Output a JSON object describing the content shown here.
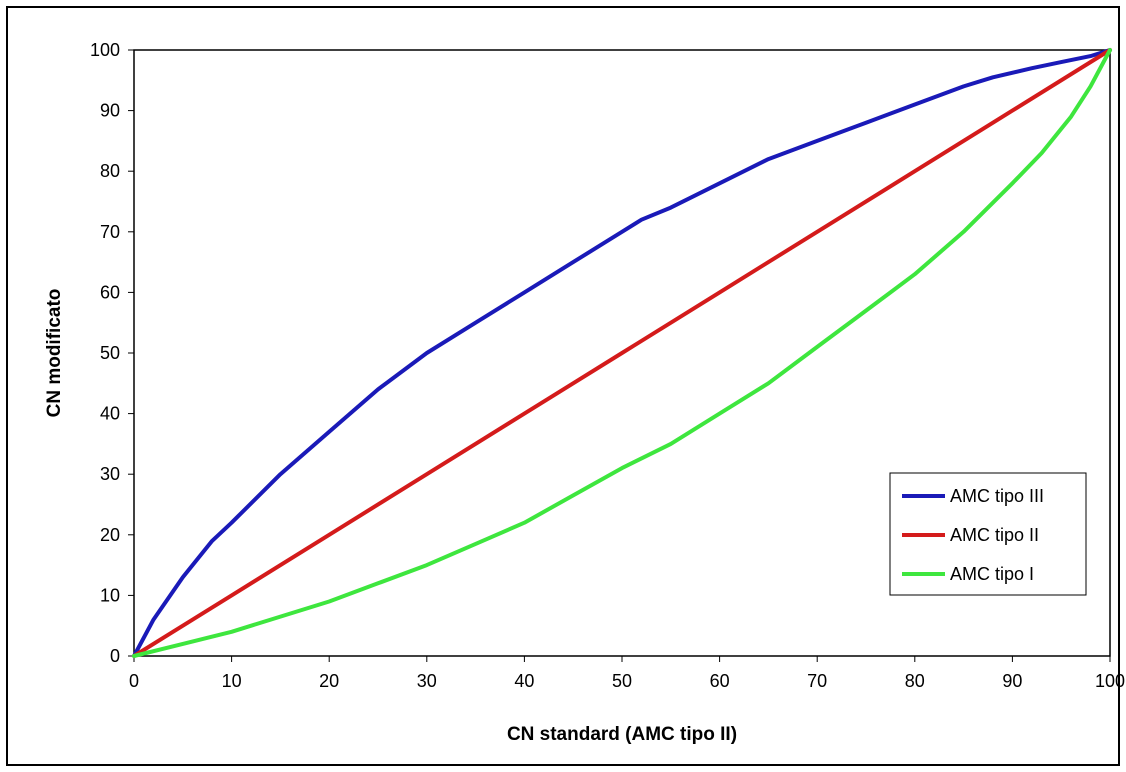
{
  "chart_data": {
    "type": "line",
    "title": "",
    "xlabel": "CN standard (AMC tipo II)",
    "ylabel": "CN modificato",
    "xlim": [
      0,
      100
    ],
    "ylim": [
      0,
      100
    ],
    "xticks": [
      "0",
      "10",
      "20",
      "30",
      "40",
      "50",
      "60",
      "70",
      "80",
      "90",
      "100"
    ],
    "yticks": [
      "0",
      "10",
      "20",
      "30",
      "40",
      "50",
      "60",
      "70",
      "80",
      "90",
      "100"
    ],
    "grid": true,
    "legend_position": "bottom-right",
    "series": [
      {
        "name": "AMC tipo III",
        "color": "#1a1ab8",
        "x": [
          0,
          2,
          5,
          8,
          10,
          15,
          20,
          25,
          30,
          35,
          40,
          45,
          50,
          52,
          55,
          60,
          65,
          70,
          75,
          80,
          85,
          88,
          92,
          95,
          98,
          100
        ],
        "y": [
          0,
          6,
          13,
          19,
          22,
          30,
          37,
          44,
          50,
          55,
          60,
          65,
          70,
          72,
          74,
          78,
          82,
          85,
          88,
          91,
          94,
          95.5,
          97,
          98,
          99,
          100
        ]
      },
      {
        "name": "AMC tipo II",
        "color": "#d41b1b",
        "x": [
          0,
          10,
          20,
          30,
          40,
          50,
          60,
          70,
          80,
          90,
          100
        ],
        "y": [
          0,
          10,
          20,
          30,
          40,
          50,
          60,
          70,
          80,
          90,
          100
        ]
      },
      {
        "name": "AMC tipo I",
        "color": "#3ee63e",
        "x": [
          0,
          5,
          10,
          15,
          20,
          25,
          30,
          35,
          40,
          45,
          50,
          55,
          60,
          65,
          70,
          75,
          80,
          85,
          90,
          93,
          96,
          98,
          100
        ],
        "y": [
          0,
          2,
          4,
          6.5,
          9,
          12,
          15,
          18.5,
          22,
          26.5,
          31,
          35,
          40,
          45,
          51,
          57,
          63,
          70,
          78,
          83,
          89,
          94,
          100
        ]
      }
    ]
  }
}
